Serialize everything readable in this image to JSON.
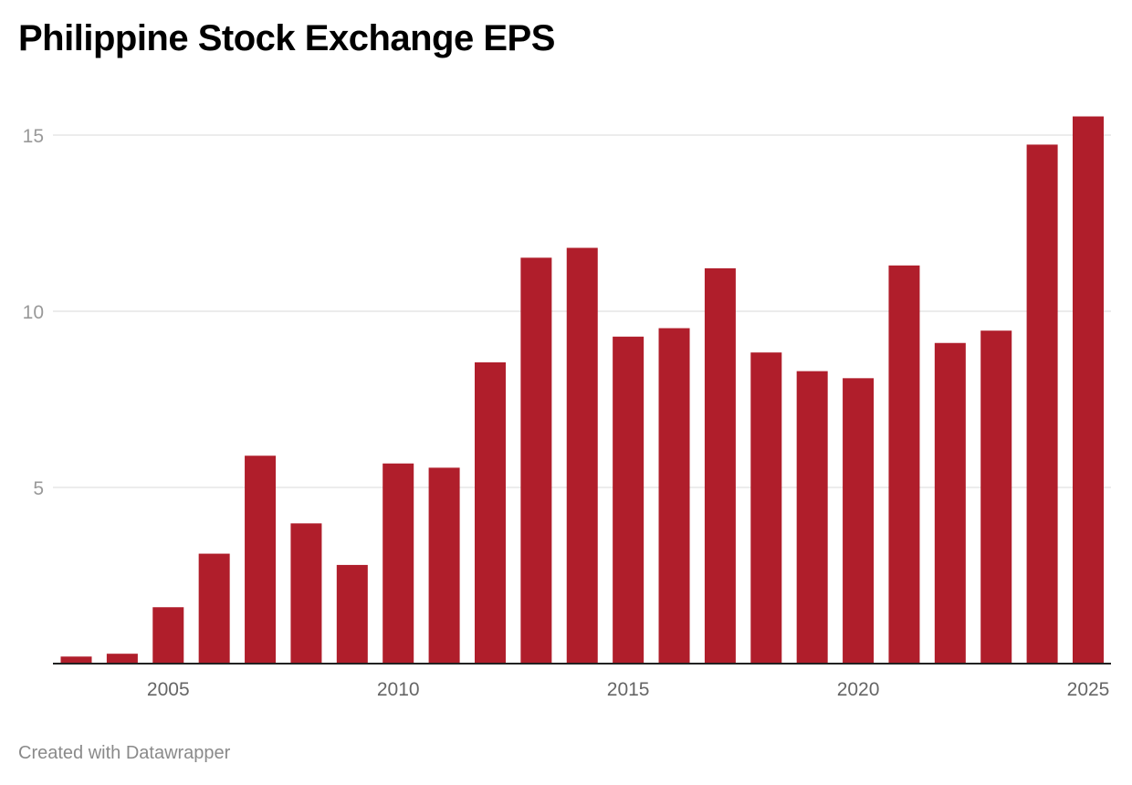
{
  "chart_data": {
    "type": "bar",
    "title": "Philippine Stock Exchange EPS",
    "xlabel": "",
    "ylabel": "",
    "categories": [
      "2003",
      "2004",
      "2005",
      "2006",
      "2007",
      "2008",
      "2009",
      "2010",
      "2011",
      "2012",
      "2013",
      "2014",
      "2015",
      "2016",
      "2017",
      "2018",
      "2019",
      "2020",
      "2021",
      "2022",
      "2023",
      "2024",
      "2025"
    ],
    "values": [
      0.2,
      0.28,
      1.6,
      3.12,
      5.9,
      3.98,
      2.8,
      5.68,
      5.56,
      8.55,
      11.52,
      11.8,
      9.28,
      9.52,
      11.22,
      8.83,
      8.3,
      8.1,
      11.3,
      9.1,
      9.45,
      14.73,
      15.53
    ],
    "ylim": [
      0,
      16
    ],
    "yticks": [
      5,
      10,
      15
    ],
    "xticks": [
      "2005",
      "2010",
      "2015",
      "2020",
      "2025"
    ],
    "bar_color": "#b01e2b",
    "grid": true
  },
  "footer": "Created with Datawrapper"
}
